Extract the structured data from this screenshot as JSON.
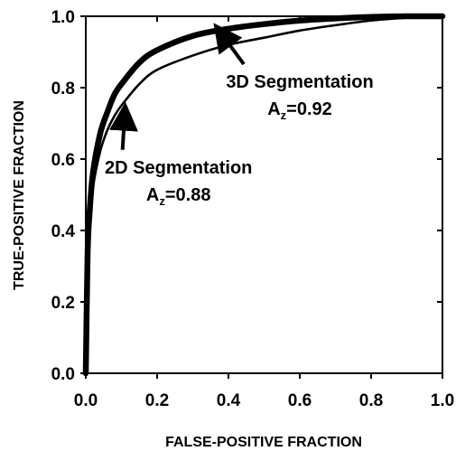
{
  "chart_data": {
    "type": "line",
    "title": "",
    "xlabel": "FALSE-POSITIVE FRACTION",
    "ylabel": "TRUE-POSITIVE FRACTION",
    "xlim": [
      0,
      1
    ],
    "ylim": [
      0,
      1
    ],
    "xticks": [
      "0.0",
      "0.2",
      "0.4",
      "0.6",
      "0.8",
      "1.0"
    ],
    "yticks": [
      "0.0",
      "0.2",
      "0.4",
      "0.6",
      "0.8",
      "1.0"
    ],
    "grid": false,
    "series": [
      {
        "x": [
          0,
          0.005,
          0.01,
          0.02,
          0.04,
          0.06,
          0.08,
          0.1,
          0.15,
          0.2,
          0.3,
          0.4,
          0.5,
          0.6,
          0.7,
          0.8,
          0.9,
          1.0
        ],
        "y": [
          0,
          0.32,
          0.42,
          0.52,
          0.62,
          0.68,
          0.72,
          0.75,
          0.81,
          0.85,
          0.89,
          0.92,
          0.94,
          0.96,
          0.975,
          0.988,
          0.996,
          1.0
        ]
      },
      {
        "x": [
          0,
          0.005,
          0.01,
          0.02,
          0.04,
          0.06,
          0.08,
          0.1,
          0.15,
          0.2,
          0.3,
          0.4,
          0.5,
          0.6,
          0.7,
          0.8,
          0.9,
          1.0
        ],
        "y": [
          0,
          0.33,
          0.44,
          0.56,
          0.67,
          0.73,
          0.78,
          0.81,
          0.87,
          0.905,
          0.945,
          0.965,
          0.978,
          0.988,
          0.994,
          0.998,
          1.0,
          1.0
        ]
      }
    ],
    "annotations": [
      {
        "label": "3D Segmentation",
        "az_main": "A",
        "az_sub": "z",
        "az_value": "=0.92",
        "points_to": [
          0.37,
          0.965
        ],
        "label_at": [
          0.6,
          0.8
        ]
      },
      {
        "label": "2D Segmentation",
        "az_main": "A",
        "az_sub": "z",
        "az_value": "=0.88",
        "points_to": [
          0.11,
          0.74
        ],
        "label_at": [
          0.26,
          0.56
        ]
      }
    ],
    "colors": {
      "line": "#000000",
      "background": "#ffffff"
    }
  }
}
